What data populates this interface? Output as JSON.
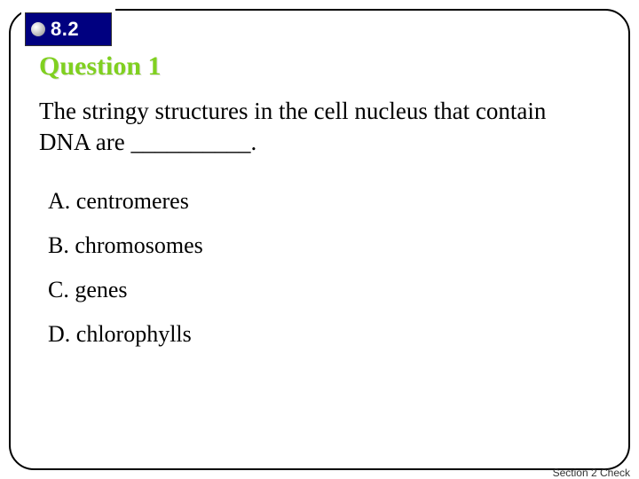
{
  "section": {
    "number": "8.2"
  },
  "question": {
    "title": "Question 1",
    "prompt": "The stringy structures in the cell nucleus that contain DNA are __________.",
    "options": [
      {
        "letter": "A",
        "text": "centromeres"
      },
      {
        "letter": "B",
        "text": "chromosomes"
      },
      {
        "letter": "C",
        "text": "genes"
      },
      {
        "letter": "D",
        "text": "chlorophylls"
      }
    ]
  },
  "footer": {
    "text": "Section 2 Check"
  },
  "style": {
    "title_color": "#80d020",
    "badge_bg": "#000080",
    "badge_text_color": "#ffffff",
    "body_font": "Times New Roman",
    "title_fontsize": 30,
    "body_fontsize": 27,
    "option_fontsize": 26
  }
}
